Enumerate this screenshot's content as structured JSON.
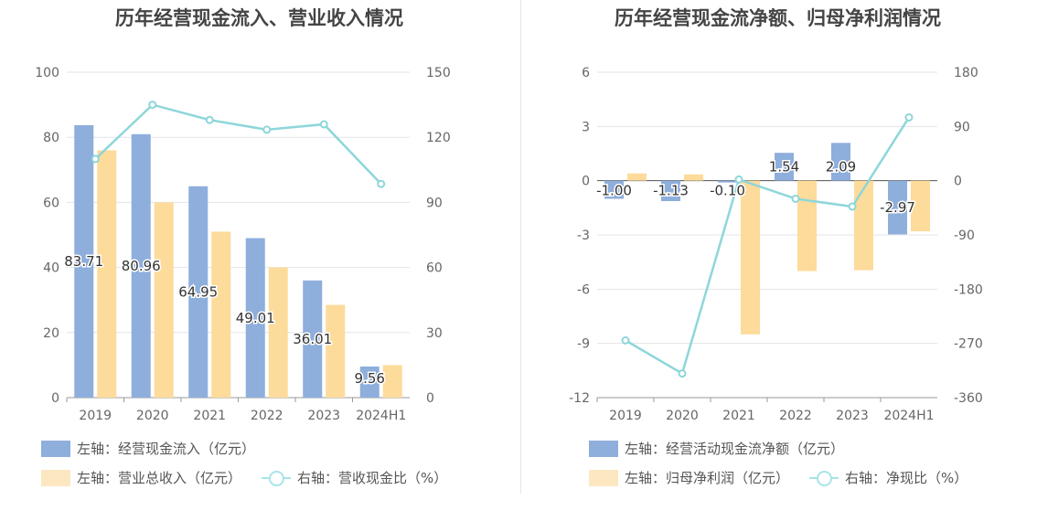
{
  "chart_data": [
    {
      "type": "bar",
      "title": "历年经营现金流入、营业收入情况",
      "categories": [
        "2019",
        "2020",
        "2021",
        "2022",
        "2023",
        "2024H1"
      ],
      "left_axis": {
        "ylim": [
          0,
          100
        ],
        "ticks": [
          "0",
          "20",
          "40",
          "60",
          "80",
          "100"
        ]
      },
      "right_axis": {
        "ylim": [
          0,
          150
        ],
        "ticks": [
          "0",
          "30",
          "60",
          "90",
          "120",
          "150"
        ]
      },
      "series": [
        {
          "name": "左轴：经营现金流入（亿元）",
          "kind": "bar",
          "axis": "left",
          "color": "#8eaedc",
          "values": [
            83.71,
            80.96,
            64.95,
            49.01,
            36.01,
            9.56
          ],
          "labels": [
            "83.71",
            "80.96",
            "64.95",
            "49.01",
            "36.01",
            "9.56"
          ]
        },
        {
          "name": "左轴：营业总收入（亿元）",
          "kind": "bar",
          "axis": "left",
          "color": "#fddb9b",
          "values": [
            76,
            60,
            51,
            40,
            28.5,
            10
          ]
        },
        {
          "name": "右轴：营收现金比（%）",
          "kind": "line",
          "axis": "right",
          "color": "#8ed6da",
          "values": [
            110,
            135,
            128,
            123.5,
            126,
            98.5
          ]
        }
      ],
      "legend": "bottom"
    },
    {
      "type": "bar",
      "title": "历年经营现金流净额、归母净利润情况",
      "categories": [
        "2019",
        "2020",
        "2021",
        "2022",
        "2023",
        "2024H1"
      ],
      "left_axis": {
        "ylim": [
          -12,
          6
        ],
        "ticks": [
          "-12",
          "-9",
          "-6",
          "-3",
          "0",
          "3",
          "6"
        ]
      },
      "right_axis": {
        "ylim": [
          -360,
          180
        ],
        "ticks": [
          "-360",
          "-270",
          "-180",
          "-90",
          "0",
          "90",
          "180"
        ]
      },
      "series": [
        {
          "name": "左轴：经营活动现金流净额（亿元）",
          "kind": "bar",
          "axis": "left",
          "color": "#8eaedc",
          "values": [
            -1.0,
            -1.13,
            -0.1,
            1.54,
            2.09,
            -2.97
          ],
          "labels": [
            "-1.00",
            "-1.13",
            "-0.10",
            "1.54",
            "2.09",
            "-2.97"
          ]
        },
        {
          "name": "左轴：归母净利润（亿元）",
          "kind": "bar",
          "axis": "left",
          "color": "#fddb9b",
          "values": [
            0.4,
            0.35,
            -8.5,
            -5.0,
            -4.95,
            -2.8
          ]
        },
        {
          "name": "右轴：净现比（%）",
          "kind": "line",
          "axis": "right",
          "color": "#8ed6da",
          "values": [
            -265,
            -320,
            2,
            -30,
            -43,
            105
          ]
        }
      ],
      "legend": "bottom"
    }
  ]
}
